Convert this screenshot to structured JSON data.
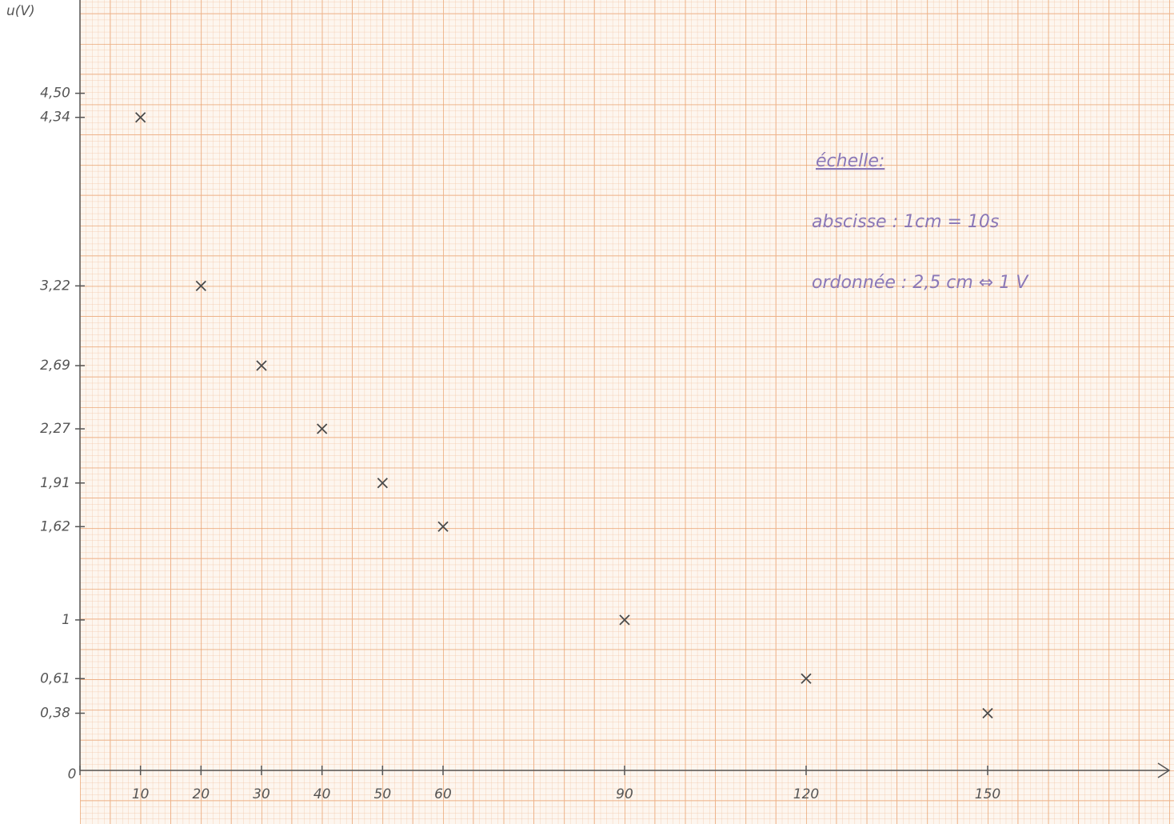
{
  "chart_data": {
    "type": "scatter",
    "y_label": "u(V)",
    "x": [
      10,
      20,
      30,
      40,
      50,
      60,
      90,
      120,
      150
    ],
    "values": [
      4.34,
      3.22,
      2.69,
      2.27,
      1.91,
      1.62,
      1,
      0.61,
      0.38
    ],
    "color": "#4a4a4a",
    "xlim": [
      0,
      180
    ],
    "ylim": [
      0,
      5.12
    ],
    "xticks": [
      0,
      10,
      20,
      30,
      40,
      50,
      60,
      90,
      120,
      150
    ],
    "yticks": [
      {
        "value": 4.5,
        "label": "4,50"
      },
      {
        "value": 4.34,
        "label": "4,34"
      },
      {
        "value": 3.22,
        "label": "3,22"
      },
      {
        "value": 2.69,
        "label": "2,69"
      },
      {
        "value": 2.27,
        "label": "2,27"
      },
      {
        "value": 1.91,
        "label": "1,91"
      },
      {
        "value": 1.62,
        "label": "1,62"
      },
      1,
      {
        "value": 0.61,
        "label": "0,61"
      },
      {
        "value": 0.38,
        "label": "0,38"
      }
    ],
    "annotations": [
      "échelle:",
      "abscisse : 1cm = 10s",
      "ordonnée : 2,5 cm ⇔ 1 V"
    ]
  }
}
